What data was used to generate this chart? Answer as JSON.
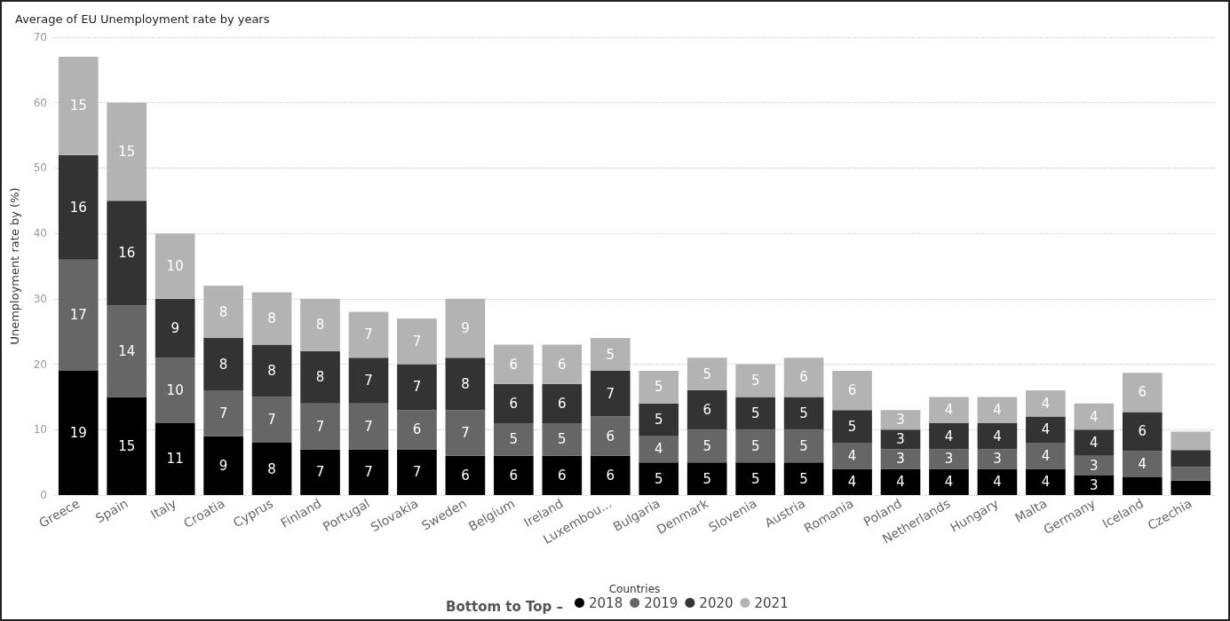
{
  "chart_data": {
    "type": "bar",
    "stacked": true,
    "title": "Average of EU Unemployment rate by years",
    "xlabel": "Countries",
    "ylabel": "Unemployment rate by (%)",
    "legend_title": "Bottom to Top –",
    "categories": [
      "Greece",
      "Spain",
      "Italy",
      "Croatia",
      "Cyprus",
      "Finland",
      "Portugal",
      "Slovakia",
      "Sweden",
      "Belgium",
      "Ireland",
      "Luxembou...",
      "Bulgaria",
      "Denmark",
      "Slovenia",
      "Austria",
      "Romania",
      "Poland",
      "Netherlands",
      "Hungary",
      "Malta",
      "Germany",
      "Iceland",
      "Czechia"
    ],
    "series": [
      {
        "name": "2018",
        "color": "#000000",
        "values": [
          19,
          15,
          11,
          9,
          8,
          7,
          7,
          7,
          6,
          6,
          6,
          6,
          5,
          5,
          5,
          5,
          4,
          4,
          4,
          4,
          4,
          3,
          2.7,
          2.2
        ],
        "value_labels": [
          "19",
          "15",
          "11",
          "9",
          "8",
          "7",
          "7",
          "7",
          "6",
          "6",
          "6",
          "6",
          "5",
          "5",
          "5",
          "5",
          "4",
          "4",
          "4",
          "4",
          "4",
          "3",
          null,
          null
        ]
      },
      {
        "name": "2019",
        "color": "#666666",
        "values": [
          17,
          14,
          10,
          7,
          7,
          7,
          7,
          6,
          7,
          5,
          5,
          6,
          4,
          5,
          5,
          5,
          4,
          3,
          3,
          3,
          4,
          3,
          4,
          2.1
        ],
        "value_labels": [
          "17",
          "14",
          "10",
          "7",
          "7",
          "7",
          "7",
          "6",
          "7",
          "5",
          "5",
          "6",
          "4",
          "5",
          "5",
          "5",
          "4",
          "3",
          "3",
          "3",
          "4",
          "3",
          "4",
          null
        ]
      },
      {
        "name": "2020",
        "color": "#333333",
        "values": [
          16,
          16,
          9,
          8,
          8,
          8,
          7,
          7,
          8,
          6,
          6,
          7,
          5,
          6,
          5,
          5,
          5,
          3,
          4,
          4,
          4,
          4,
          6,
          2.6
        ],
        "value_labels": [
          "16",
          "16",
          "9",
          "8",
          "8",
          "8",
          "7",
          "7",
          "8",
          "6",
          "6",
          "7",
          "5",
          "6",
          "5",
          "5",
          "5",
          "3",
          "4",
          "4",
          "4",
          "4",
          "6",
          null
        ]
      },
      {
        "name": "2021",
        "color": "#b3b3b3",
        "values": [
          15,
          15,
          10,
          8,
          8,
          8,
          7,
          7,
          9,
          6,
          6,
          5,
          5,
          5,
          5,
          6,
          6,
          3,
          4,
          4,
          4,
          4,
          6,
          2.8
        ],
        "value_labels": [
          "15",
          "15",
          "10",
          "8",
          "8",
          "8",
          "7",
          "7",
          "9",
          "6",
          "6",
          "5",
          "5",
          "5",
          "5",
          "6",
          "6",
          "3",
          "4",
          "4",
          "4",
          "4",
          "6",
          null
        ]
      }
    ],
    "ylim": [
      0,
      70
    ],
    "yticks": [
      0,
      10,
      20,
      30,
      40,
      50,
      60,
      70
    ],
    "grid": "y",
    "legend": "bottom"
  }
}
